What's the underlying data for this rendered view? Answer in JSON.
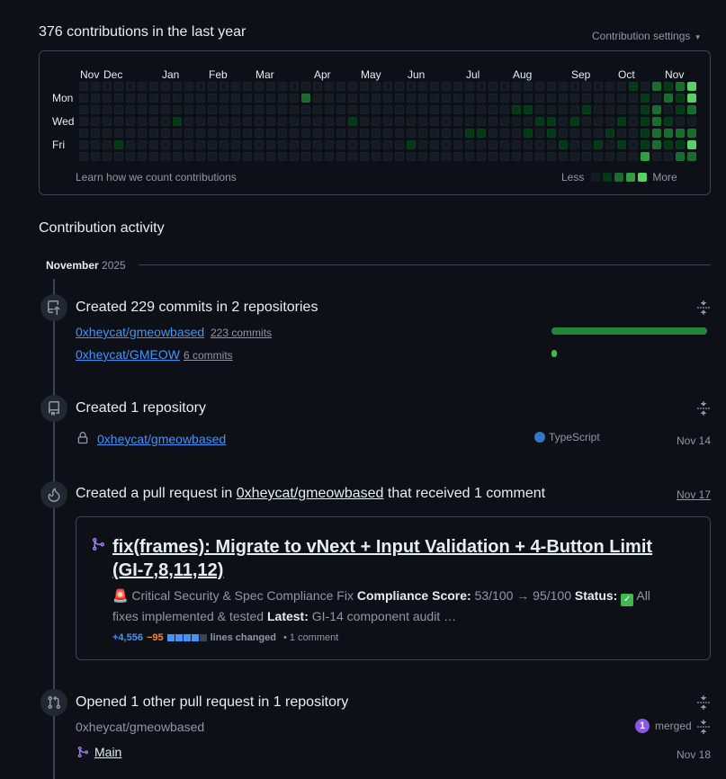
{
  "header": {
    "title": "376 contributions in the last year",
    "settings_label": "Contribution settings",
    "settings_caret": "▾"
  },
  "calendar": {
    "months": [
      "Nov",
      "Dec",
      "Jan",
      "Feb",
      "Mar",
      "Apr",
      "May",
      "Jun",
      "Jul",
      "Aug",
      "Sep",
      "Oct",
      "Nov"
    ],
    "days": [
      "Mon",
      "Wed",
      "Fri"
    ],
    "learn_link": "Learn how we count contributions",
    "legend_less": "Less",
    "legend_more": "More",
    "colors": [
      "#151b23",
      "#033a16",
      "#196c2e",
      "#2ea043",
      "#56d364"
    ]
  },
  "activity": {
    "title": "Contribution activity",
    "month": "November",
    "year": "2025",
    "commits_event": {
      "title": "Created 229 commits in 2 repositories",
      "repos": [
        {
          "name": "0xheycat/gmeowbased",
          "count": "223 commits",
          "fraction": 0.974
        },
        {
          "name": "0xheycat/GMEOW",
          "count": "6 commits",
          "fraction": 0.026
        }
      ]
    },
    "repo_event": {
      "title": "Created 1 repository",
      "repo": "0xheycat/gmeowbased",
      "language": "TypeScript",
      "language_color": "#3178c6",
      "date": "Nov 14"
    },
    "pr_event": {
      "title_prefix": "Created a pull request in ",
      "title_repo": "0xheycat/gmeowbased",
      "title_suffix": " that received 1 comment",
      "date": "Nov 17",
      "pr_title": "fix(frames): Migrate to vNext + Input Validation + 4-Button Limit (GI-7,8,11,12)",
      "desc_emoji": "🚨",
      "desc_1": " Critical Security & Spec Compliance Fix ",
      "desc_b1": "Compliance Score:",
      "desc_2": " 53/100 → 95/100 ",
      "desc_b2": "Status:",
      "desc_check": "✓",
      "desc_3": " All fixes implemented & tested ",
      "desc_b3": "Latest:",
      "desc_4": " GI-14 component audit …",
      "additions": "+4,556",
      "deletions": "−95",
      "lines_changed": "lines changed",
      "comments": "• 1 comment"
    },
    "other_pr_event": {
      "title": "Opened 1 other pull request in 1 repository",
      "repo": "0xheycat/gmeowbased",
      "merged_count": "1",
      "merged_label": "merged",
      "pr_name": "Main",
      "date": "Nov 18"
    }
  }
}
